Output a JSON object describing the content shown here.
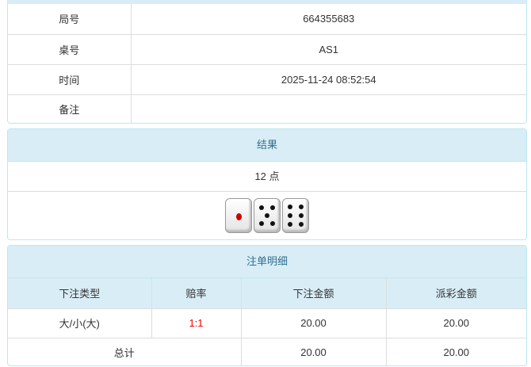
{
  "info": {
    "rows": [
      {
        "label": "局号",
        "value": "664355683"
      },
      {
        "label": "桌号",
        "value": "AS1"
      },
      {
        "label": "时间",
        "value": "2025-11-24 08:52:54"
      },
      {
        "label": "备注",
        "value": ""
      }
    ]
  },
  "result": {
    "title": "结果",
    "points": "12 点",
    "dice": [
      1,
      5,
      6
    ]
  },
  "bets": {
    "title": "注单明细",
    "headers": [
      "下注类型",
      "赔率",
      "下注金额",
      "派彩金额"
    ],
    "rows": [
      {
        "type": "大/小(大)",
        "odds": "1:1",
        "amount": "20.00",
        "payout": "20.00"
      }
    ],
    "total": {
      "label": "总计",
      "amount": "20.00",
      "payout": "20.00"
    },
    "odds_color": "#ee0000"
  }
}
